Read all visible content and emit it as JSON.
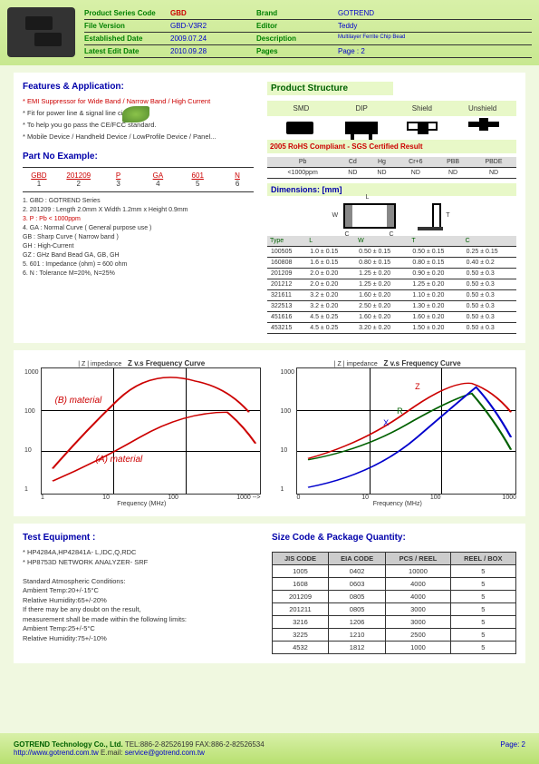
{
  "header": {
    "rows": [
      {
        "l1": "Product Series Code",
        "v1": "GBD",
        "v1red": true,
        "l2": "Brand",
        "v2": "GOTREND"
      },
      {
        "l1": "File Version",
        "v1": "GBD-V3R2",
        "l2": "Editor",
        "v2": "Teddy"
      },
      {
        "l1": "Established Date",
        "v1": "2009.07.24",
        "l2": "Description",
        "v2": "Multilayer Ferrite Chip Bead",
        "small": true
      },
      {
        "l1": "Latest Edit Date",
        "v1": "2010.09.28",
        "l2": "Pages",
        "v2": "Page : 2"
      }
    ]
  },
  "features": {
    "title": "Features & Application:",
    "items": [
      {
        "text": "* EMI Suppressor for Wide Band / Narrow Band / High Current",
        "red": true
      },
      {
        "text": "* Fit for power line & signal line circuit",
        "leaf": true
      },
      {
        "text": "* To help you go pass the CE/FCC standard."
      },
      {
        "text": "* Mobile Device / Handheld Device / LowProfile Device / Panel..."
      }
    ]
  },
  "partno": {
    "title": "Part No Example:",
    "codes": [
      "GBD",
      "201209",
      "P",
      "GA",
      "601",
      "N"
    ],
    "nums": [
      "1",
      "2",
      "3",
      "4",
      "5",
      "6"
    ],
    "notes": [
      "1. GBD : GOTREND Series",
      "2. 201209 : Length 2.0mm X Width 1.2mm x Height 0.9mm",
      "3. P : Pb  < 1000ppm",
      "4.   GA   :  Normal Curve ( General purpose use )",
      "      GB   :  Sharp  Curve ( Narrow band )",
      "      GH   :  High-Current",
      "      GZ   :  GHz Band Bead  GA, GB, GH",
      "5.  601   :  Impedance (ohm) = 600 ohm",
      "6.   N     :  Tolerance  M=20%, N=25%"
    ],
    "rednote": 2
  },
  "structure": {
    "title": "Product Structure",
    "types": [
      "SMD",
      "DIP",
      "Shield",
      "Unshield"
    ]
  },
  "rohs": {
    "banner": "2005 RoHS  Compliant - SGS Certified Result",
    "head": [
      "Pb",
      "Cd",
      "Hg",
      "Cr+6",
      "PBB",
      "PBDE"
    ],
    "row": [
      "<1000ppm",
      "ND",
      "ND",
      "ND",
      "ND",
      "ND"
    ]
  },
  "dimensions": {
    "title": "Dimensions: [mm]",
    "head": [
      "Type",
      "L",
      "W",
      "T",
      "C"
    ],
    "rows": [
      [
        "100505",
        "1.0 ± 0.15",
        "0.50 ± 0.15",
        "0.50 ± 0.15",
        "0.25 ± 0.15"
      ],
      [
        "160808",
        "1.6 ± 0.15",
        "0.80 ± 0.15",
        "0.80 ± 0.15",
        "0.40 ± 0.2"
      ],
      [
        "201209",
        "2.0 ± 0.20",
        "1.25 ± 0.20",
        "0.90 ± 0.20",
        "0.50 ± 0.3"
      ],
      [
        "201212",
        "2.0 ± 0.20",
        "1.25 ± 0.20",
        "1.25 ± 0.20",
        "0.50 ± 0.3"
      ],
      [
        "321611",
        "3.2 ± 0.20",
        "1.60 ± 0.20",
        "1.10 ± 0.20",
        "0.50 ± 0.3"
      ],
      [
        "322513",
        "3.2 ± 0.20",
        "2.50 ± 0.20",
        "1.30 ± 0.20",
        "0.50 ± 0.3"
      ],
      [
        "451616",
        "4.5 ± 0.25",
        "1.60 ± 0.20",
        "1.60 ± 0.20",
        "0.50 ± 0.3"
      ],
      [
        "453215",
        "4.5 ± 0.25",
        "3.20 ± 0.20",
        "1.50 ± 0.20",
        "0.50 ± 0.3"
      ]
    ]
  },
  "chart1": {
    "ylabel": "| Z | impedance",
    "title": "Z v.s Frequency Curve",
    "yticks": [
      "1000",
      "100",
      "10",
      "1"
    ],
    "xticks": [
      "1",
      "10",
      "100",
      "1000  -->"
    ],
    "xlabel": "Frequency (MHz)",
    "ann1": "(B) material",
    "ann2": "(A) material",
    "colors": {
      "a": "#cc0000",
      "b": "#cc0000"
    }
  },
  "chart2": {
    "ylabel": "| Z | impedance",
    "title": "Z v.s Frequency Curve",
    "yticks": [
      "1000",
      "100",
      "10",
      "1"
    ],
    "xticks": [
      "0",
      "10",
      "100",
      "1000"
    ],
    "xlabel": "Frequency (MHz)",
    "colors": {
      "z": "#cc0000",
      "r": "#006000",
      "x": "#0000cc"
    }
  },
  "testeq": {
    "title": "Test Equipment :",
    "lines": [
      "* HP4284A,HP42841A- L,IDC,Q,RDC",
      "* HP8753D NETWORK ANALYZER- SRF",
      "",
      "Standard Atmospheric Conditions:",
      "Ambient Temp:20+/-15°C",
      "Relative Humidity:65+/-20%",
      "If there may be any doubt on the result,",
      "measurement shall be made within the following limits:",
      "Ambient Temp:25+/-5°C",
      "Relative Humidity:75+/-10%"
    ]
  },
  "sizecode": {
    "title": "Size Code & Package Quantity:",
    "head": [
      "JIS CODE",
      "EIA CODE",
      "PCS / REEL",
      "REEL / BOX"
    ],
    "rows": [
      [
        "1005",
        "0402",
        "10000",
        "5"
      ],
      [
        "1608",
        "0603",
        "4000",
        "5"
      ],
      [
        "201209",
        "0805",
        "4000",
        "5"
      ],
      [
        "201211",
        "0805",
        "3000",
        "5"
      ],
      [
        "3216",
        "1206",
        "3000",
        "5"
      ],
      [
        "3225",
        "1210",
        "2500",
        "5"
      ],
      [
        "4532",
        "1812",
        "1000",
        "5"
      ]
    ]
  },
  "footer": {
    "company": "GOTREND Technology Co., Ltd.",
    "contact": "   TEL:886-2-82526199   FAX:886-2-82526534",
    "url": "http://www.gotrend.com.tw",
    "email": "  E.mail: ",
    "emailaddr": "service@gotrend.com.tw",
    "page": "Page: 2"
  }
}
